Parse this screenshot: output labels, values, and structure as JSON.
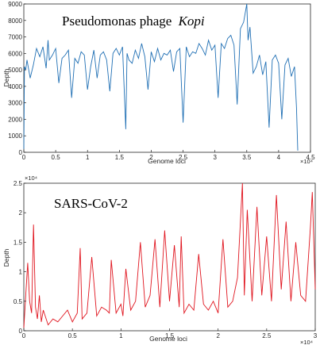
{
  "chart_data": [
    {
      "type": "line",
      "title": "Pseudomonas phage",
      "title_italic": "Kopi",
      "xlabel": "Genome loci",
      "ylabel": "Depth",
      "x_exponent": "×10⁴",
      "xlim": [
        0,
        4.5
      ],
      "ylim": [
        0,
        9000
      ],
      "xticks": [
        "0",
        "0.5",
        "1",
        "1.5",
        "2",
        "2.5",
        "3",
        "3.5",
        "4",
        "4.5"
      ],
      "yticks": [
        "0",
        "1000",
        "2000",
        "3000",
        "4000",
        "5000",
        "6000",
        "7000",
        "8000",
        "9000"
      ],
      "color": "#1f6fb4",
      "series": [
        {
          "x": [
            0,
            0.01,
            0.03,
            0.05,
            0.1,
            0.15,
            0.2,
            0.25,
            0.3,
            0.35,
            0.38,
            0.4,
            0.45,
            0.5,
            0.55,
            0.6,
            0.65,
            0.7,
            0.75,
            0.8,
            0.85,
            0.9,
            0.95,
            1.0,
            1.05,
            1.1,
            1.15,
            1.2,
            1.25,
            1.3,
            1.35,
            1.4,
            1.45,
            1.5,
            1.55,
            1.6,
            1.62,
            1.65,
            1.7,
            1.75,
            1.8,
            1.85,
            1.9,
            1.95,
            2.0,
            2.05,
            2.1,
            2.15,
            2.2,
            2.25,
            2.3,
            2.35,
            2.4,
            2.45,
            2.5,
            2.55,
            2.6,
            2.65,
            2.7,
            2.75,
            2.8,
            2.85,
            2.9,
            2.95,
            3.0,
            3.05,
            3.1,
            3.15,
            3.2,
            3.25,
            3.3,
            3.35,
            3.4,
            3.45,
            3.5,
            3.52,
            3.55,
            3.6,
            3.65,
            3.7,
            3.75,
            3.8,
            3.85,
            3.9,
            3.95,
            4.0,
            4.05,
            4.1,
            4.15,
            4.2,
            4.25,
            4.28,
            4.3
          ],
          "y": [
            200,
            5200,
            5000,
            5600,
            4500,
            5300,
            6300,
            5800,
            6400,
            5100,
            6800,
            5600,
            5900,
            6300,
            4200,
            5700,
            5900,
            6200,
            3300,
            5700,
            5400,
            6100,
            5900,
            3800,
            5200,
            6200,
            4500,
            5900,
            6100,
            5600,
            3700,
            6000,
            6300,
            5900,
            6400,
            1400,
            6000,
            5600,
            5400,
            6200,
            5700,
            6600,
            5800,
            3800,
            6100,
            5500,
            6300,
            5600,
            6000,
            5900,
            6200,
            4900,
            6100,
            6300,
            1800,
            6400,
            5800,
            6100,
            6000,
            6600,
            6300,
            5900,
            6800,
            6200,
            6500,
            3300,
            6600,
            6300,
            6900,
            7100,
            6500,
            2900,
            7500,
            7900,
            9000,
            6800,
            7600,
            4800,
            5200,
            5900,
            4700,
            5500,
            1500,
            5600,
            5900,
            5400,
            2000,
            5300,
            5700,
            4600,
            5200,
            2700,
            100
          ]
        }
      ]
    },
    {
      "type": "line",
      "title": "SARS-CoV-2",
      "xlabel": "Genome loci",
      "ylabel": "Depth",
      "x_exponent": "×10⁴",
      "y_exponent": "×10⁴",
      "xlim": [
        0,
        3
      ],
      "ylim": [
        0,
        2.5
      ],
      "xticks": [
        "0",
        "0.5",
        "1",
        "1.5",
        "2",
        "2.5",
        "3"
      ],
      "yticks": [
        "0",
        "0.5",
        "1",
        "1.5",
        "2",
        "2.5"
      ],
      "color": "#e0141e",
      "series": [
        {
          "x": [
            0,
            0.02,
            0.04,
            0.06,
            0.08,
            0.1,
            0.12,
            0.14,
            0.16,
            0.18,
            0.2,
            0.25,
            0.3,
            0.35,
            0.4,
            0.45,
            0.5,
            0.55,
            0.58,
            0.6,
            0.65,
            0.7,
            0.75,
            0.8,
            0.85,
            0.88,
            0.9,
            0.95,
            1.0,
            1.02,
            1.05,
            1.1,
            1.15,
            1.2,
            1.25,
            1.3,
            1.35,
            1.4,
            1.45,
            1.5,
            1.55,
            1.6,
            1.62,
            1.65,
            1.7,
            1.75,
            1.8,
            1.85,
            1.9,
            1.95,
            2.0,
            2.05,
            2.1,
            2.15,
            2.2,
            2.25,
            2.27,
            2.3,
            2.35,
            2.4,
            2.45,
            2.5,
            2.55,
            2.6,
            2.65,
            2.7,
            2.75,
            2.8,
            2.85,
            2.9,
            2.95,
            2.97,
            3.0
          ],
          "y": [
            0.05,
            0.6,
            1.15,
            0.5,
            0.3,
            1.8,
            0.4,
            0.2,
            0.6,
            0.15,
            0.35,
            0.1,
            0.2,
            0.15,
            0.25,
            0.35,
            0.15,
            0.3,
            1.4,
            0.2,
            0.3,
            1.25,
            0.25,
            0.4,
            0.35,
            0.3,
            1.2,
            0.3,
            0.45,
            0.25,
            1.05,
            0.35,
            0.5,
            1.5,
            0.4,
            0.6,
            1.55,
            0.4,
            1.7,
            0.5,
            1.45,
            0.4,
            1.6,
            0.3,
            0.45,
            0.35,
            1.3,
            0.45,
            0.35,
            0.5,
            0.3,
            1.55,
            0.4,
            0.5,
            0.9,
            2.5,
            0.6,
            2.05,
            0.5,
            2.1,
            0.6,
            1.6,
            0.5,
            2.3,
            0.7,
            1.85,
            0.5,
            1.5,
            0.6,
            0.5,
            1.75,
            2.35,
            0.7
          ]
        }
      ]
    }
  ]
}
